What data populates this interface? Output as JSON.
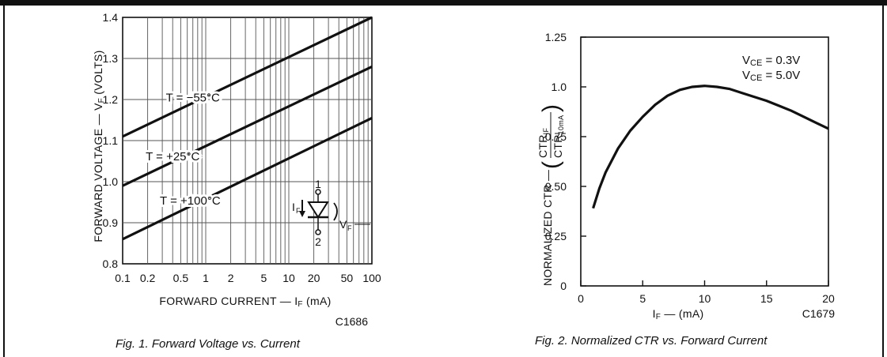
{
  "chart_data": [
    {
      "type": "line",
      "title": "",
      "caption": "Fig. 1. Forward Voltage vs. Current",
      "code": "C1686",
      "xlabel": "FORWARD CURRENT — I",
      "xlabel_sub": "F",
      "xlabel_unit": "(mA)",
      "ylabel": "FORWARD VOLTAGE — V",
      "ylabel_sub": "F",
      "ylabel_unit": "(VOLTS)",
      "xscale": "log",
      "xlim": [
        0.1,
        100
      ],
      "ylim": [
        0.8,
        1.4
      ],
      "grid": true,
      "x_ticks": [
        0.1,
        0.2,
        0.5,
        1,
        2,
        5,
        10,
        20,
        50,
        100
      ],
      "x_tick_labels": [
        "0.1",
        "0.2",
        "0.5",
        "1",
        "2",
        "5",
        "10",
        "20",
        "50",
        "100"
      ],
      "y_ticks": [
        0.8,
        0.9,
        1.0,
        1.1,
        1.2,
        1.3,
        1.4
      ],
      "y_tick_labels": [
        "0.8",
        "0.9",
        "1.0",
        "1.1",
        "1.2",
        "1.3",
        "1.4"
      ],
      "series": [
        {
          "name": "T = −55°C",
          "x": [
            0.1,
            100
          ],
          "y": [
            1.11,
            1.4
          ]
        },
        {
          "name": "T = +25°C",
          "x": [
            0.1,
            100
          ],
          "y": [
            0.99,
            1.28
          ]
        },
        {
          "name": "T = +100°C",
          "x": [
            0.1,
            100
          ],
          "y": [
            0.86,
            1.155
          ]
        }
      ],
      "inset": {
        "top_pin": "1",
        "bottom_pin": "2",
        "current_label": "I",
        "current_sub": "F",
        "voltage_label": "V",
        "voltage_sub": "F"
      }
    },
    {
      "type": "line",
      "title": "",
      "caption": "Fig. 2. Normalized CTR vs. Forward Current",
      "code": "C1679",
      "xlabel": "I",
      "xlabel_sub": "F",
      "xlabel_unit": "— (mA)",
      "ylabel": "NORMALIZED CTR —",
      "ylabel_num": "CTR",
      "ylabel_num_sub": "IF",
      "ylabel_den": "CTR",
      "ylabel_den_sub": "10mA",
      "xlim": [
        0,
        20
      ],
      "ylim": [
        0,
        1.25
      ],
      "grid": false,
      "x_ticks": [
        0,
        5,
        10,
        15,
        20
      ],
      "x_tick_labels": [
        "0",
        "5",
        "10",
        "15",
        "20"
      ],
      "y_ticks": [
        0,
        0.25,
        0.5,
        0.75,
        1.0,
        1.25
      ],
      "y_tick_labels": [
        "0",
        "0.25",
        "0.50",
        "0.75",
        "1.0",
        "1.25"
      ],
      "annotations": [
        {
          "text": "V",
          "sub": "CE",
          "value": "= 0.3V"
        },
        {
          "text": "V",
          "sub": "CE",
          "value": "= 5.0V"
        }
      ],
      "series": [
        {
          "x": [
            1,
            1.5,
            2,
            3,
            4,
            5,
            6,
            7,
            8,
            9,
            10,
            11,
            12,
            13,
            14,
            15,
            16,
            17,
            18,
            19,
            20
          ],
          "y": [
            0.39,
            0.49,
            0.57,
            0.69,
            0.78,
            0.85,
            0.91,
            0.955,
            0.985,
            1.0,
            1.005,
            1.0,
            0.99,
            0.97,
            0.95,
            0.93,
            0.905,
            0.88,
            0.85,
            0.82,
            0.79
          ]
        }
      ]
    }
  ]
}
